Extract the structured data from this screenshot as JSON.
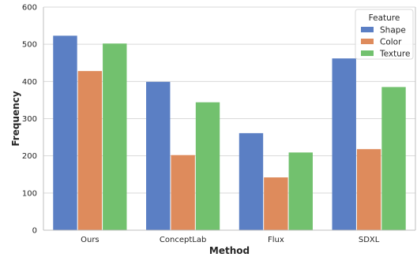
{
  "chart_data": {
    "type": "bar",
    "categories": [
      "Ours",
      "ConceptLab",
      "Flux",
      "SDXL"
    ],
    "series": [
      {
        "name": "Shape",
        "values": [
          523,
          399,
          261,
          462
        ],
        "color": "#5b7fc4"
      },
      {
        "name": "Color",
        "values": [
          428,
          202,
          142,
          218
        ],
        "color": "#de8b5c"
      },
      {
        "name": "Texture",
        "values": [
          502,
          344,
          209,
          385
        ],
        "color": "#72c16e"
      }
    ],
    "title": "",
    "xlabel": "Method",
    "ylabel": "Frequency",
    "ylim": [
      0,
      600
    ],
    "yticks": [
      0,
      100,
      200,
      300,
      400,
      500,
      600
    ],
    "grid": true,
    "legend": {
      "title": "Feature",
      "placement": "top-right"
    }
  }
}
